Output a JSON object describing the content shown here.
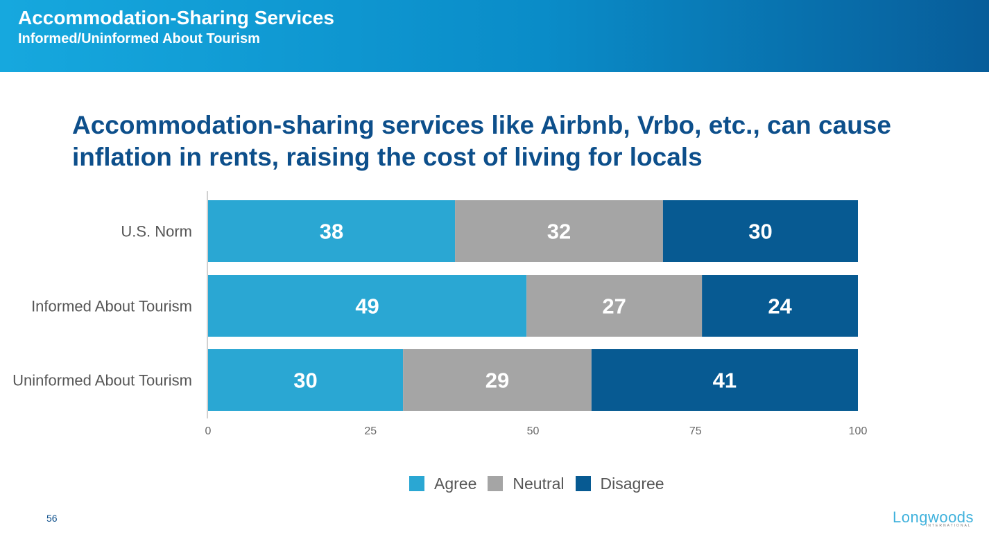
{
  "header": {
    "title": "Accommodation-Sharing Services",
    "subtitle": "Informed/Uninformed About Tourism"
  },
  "headline": "Accommodation-sharing services like Airbnb, Vrbo, etc., can cause inflation in rents, raising the cost of living for locals",
  "page_number": "56",
  "logo": {
    "text": "Longwoods",
    "sub": "INTERNATIONAL"
  },
  "colors": {
    "agree": "#2aa7d3",
    "neutral": "#a5a5a5",
    "disagree": "#075a92",
    "header_start": "#16a8de",
    "header_end": "#075d9a",
    "headline": "#0d4f8b"
  },
  "chart_data": {
    "type": "bar",
    "orientation": "horizontal",
    "stacked": true,
    "categories": [
      "U.S. Norm",
      "Informed About Tourism",
      "Uninformed About Tourism"
    ],
    "series": [
      {
        "name": "Agree",
        "values": [
          38,
          49,
          30
        ]
      },
      {
        "name": "Neutral",
        "values": [
          32,
          27,
          29
        ]
      },
      {
        "name": "Disagree",
        "values": [
          30,
          24,
          41
        ]
      }
    ],
    "xlim": [
      0,
      100
    ],
    "xticks": [
      0,
      25,
      50,
      75,
      100
    ],
    "legend_position": "bottom",
    "grid": false
  }
}
